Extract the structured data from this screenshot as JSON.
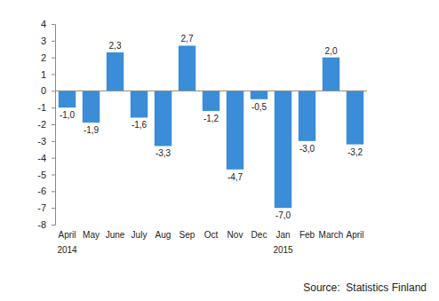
{
  "chart_data": {
    "type": "bar",
    "categories": [
      "April",
      "May",
      "June",
      "July",
      "Aug",
      "Sep",
      "Oct",
      "Nov",
      "Dec",
      "Jan",
      "Feb",
      "March",
      "April"
    ],
    "year_labels": [
      "2014",
      null,
      null,
      null,
      null,
      null,
      null,
      null,
      null,
      "2015",
      null,
      null,
      null
    ],
    "values": [
      -1.0,
      -1.9,
      2.3,
      -1.6,
      -3.3,
      2.7,
      -1.2,
      -4.7,
      -0.5,
      -7.0,
      -3.0,
      2.0,
      -3.2
    ],
    "value_labels": [
      "-1,0",
      "-1,9",
      "2,3",
      "-1,6",
      "-3,3",
      "2,7",
      "-1,2",
      "-4,7",
      "-0,5",
      "-7,0",
      "-3,0",
      "2,0",
      "-3,2"
    ],
    "data_labels": true,
    "color": "#3a8dd6",
    "ylim": [
      -8,
      4
    ],
    "yticks": [
      -8,
      -7,
      -6,
      -5,
      -4,
      -3,
      -2,
      -1,
      0,
      1,
      2,
      3,
      4
    ],
    "grid": false,
    "source": "Source:  Statistics Finland"
  }
}
